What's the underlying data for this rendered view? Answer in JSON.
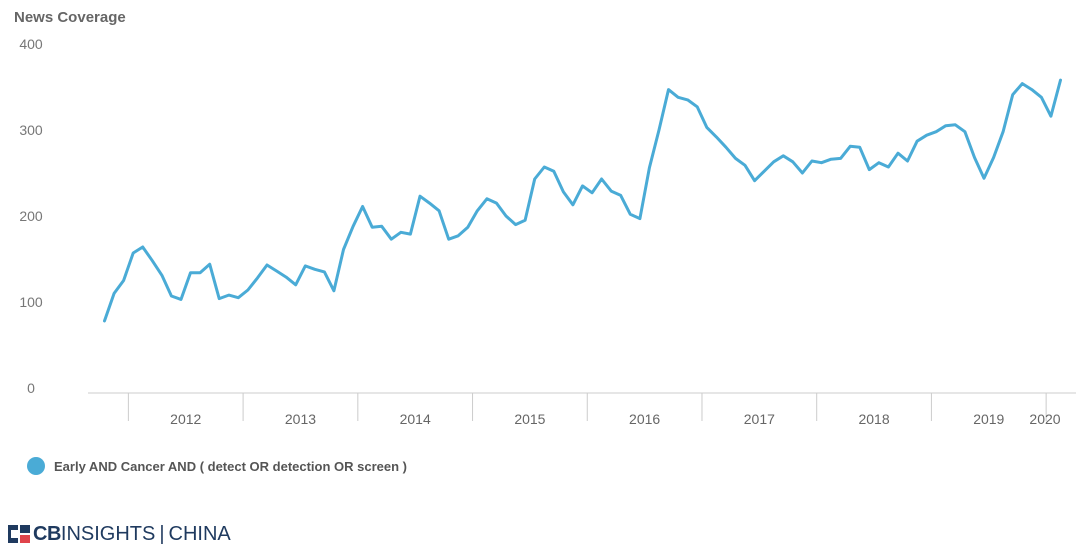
{
  "chart_data": {
    "type": "line",
    "ylabel": "News Coverage",
    "ylim": [
      0,
      400
    ],
    "yticks": [
      0,
      100,
      200,
      300,
      400
    ],
    "xticks": [
      "2012",
      "2013",
      "2014",
      "2015",
      "2016",
      "2017",
      "2018",
      "2019",
      "2020"
    ],
    "xlim": [
      "2011-10",
      "2020-02"
    ],
    "grid": false,
    "legend_position": "bottom-left",
    "series": [
      {
        "name": "Early AND Cancer AND ( detect OR detection OR screen )",
        "color": "#4aabd6",
        "x": [
          "2011-10",
          "2011-11",
          "2011-12",
          "2012-01",
          "2012-02",
          "2012-03",
          "2012-04",
          "2012-05",
          "2012-06",
          "2012-07",
          "2012-08",
          "2012-09",
          "2012-10",
          "2012-11",
          "2012-12",
          "2013-01",
          "2013-02",
          "2013-03",
          "2013-04",
          "2013-05",
          "2013-06",
          "2013-07",
          "2013-08",
          "2013-09",
          "2013-10",
          "2013-11",
          "2013-12",
          "2014-01",
          "2014-02",
          "2014-03",
          "2014-04",
          "2014-05",
          "2014-06",
          "2014-07",
          "2014-08",
          "2014-09",
          "2014-10",
          "2014-11",
          "2014-12",
          "2015-01",
          "2015-02",
          "2015-03",
          "2015-04",
          "2015-05",
          "2015-06",
          "2015-07",
          "2015-08",
          "2015-09",
          "2015-10",
          "2015-11",
          "2015-12",
          "2016-01",
          "2016-02",
          "2016-03",
          "2016-04",
          "2016-05",
          "2016-06",
          "2016-07",
          "2016-08",
          "2016-09",
          "2016-10",
          "2016-11",
          "2016-12",
          "2017-01",
          "2017-02",
          "2017-03",
          "2017-04",
          "2017-05",
          "2017-06",
          "2017-07",
          "2017-08",
          "2017-09",
          "2017-10",
          "2017-11",
          "2017-12",
          "2018-01",
          "2018-02",
          "2018-03",
          "2018-04",
          "2018-05",
          "2018-06",
          "2018-07",
          "2018-08",
          "2018-09",
          "2018-10",
          "2018-11",
          "2018-12",
          "2019-01",
          "2019-02",
          "2019-03",
          "2019-04",
          "2019-05",
          "2019-06",
          "2019-07",
          "2019-08",
          "2019-09",
          "2019-10",
          "2019-11",
          "2019-12",
          "2020-01",
          "2020-02"
        ],
        "values": [
          78,
          110,
          125,
          157,
          164,
          148,
          131,
          107,
          103,
          134,
          134,
          144,
          104,
          108,
          105,
          114,
          128,
          143,
          136,
          129,
          120,
          142,
          138,
          135,
          113,
          161,
          188,
          211,
          187,
          188,
          173,
          181,
          179,
          223,
          215,
          206,
          173,
          177,
          187,
          206,
          220,
          215,
          200,
          190,
          195,
          243,
          257,
          252,
          228,
          213,
          235,
          227,
          243,
          229,
          224,
          202,
          197,
          256,
          300,
          347,
          338,
          335,
          327,
          303,
          292,
          280,
          267,
          259,
          241,
          252,
          263,
          270,
          263,
          250,
          264,
          262,
          266,
          267,
          281,
          280,
          254,
          262,
          257,
          273,
          264,
          287,
          294,
          298,
          305,
          306,
          298,
          268,
          244,
          268,
          298,
          341,
          354,
          347,
          338,
          316,
          358
        ]
      }
    ]
  },
  "logo": {
    "cb": "CB",
    "insights": "INSIGHTS",
    "sep": "|",
    "china": "CHINA"
  }
}
